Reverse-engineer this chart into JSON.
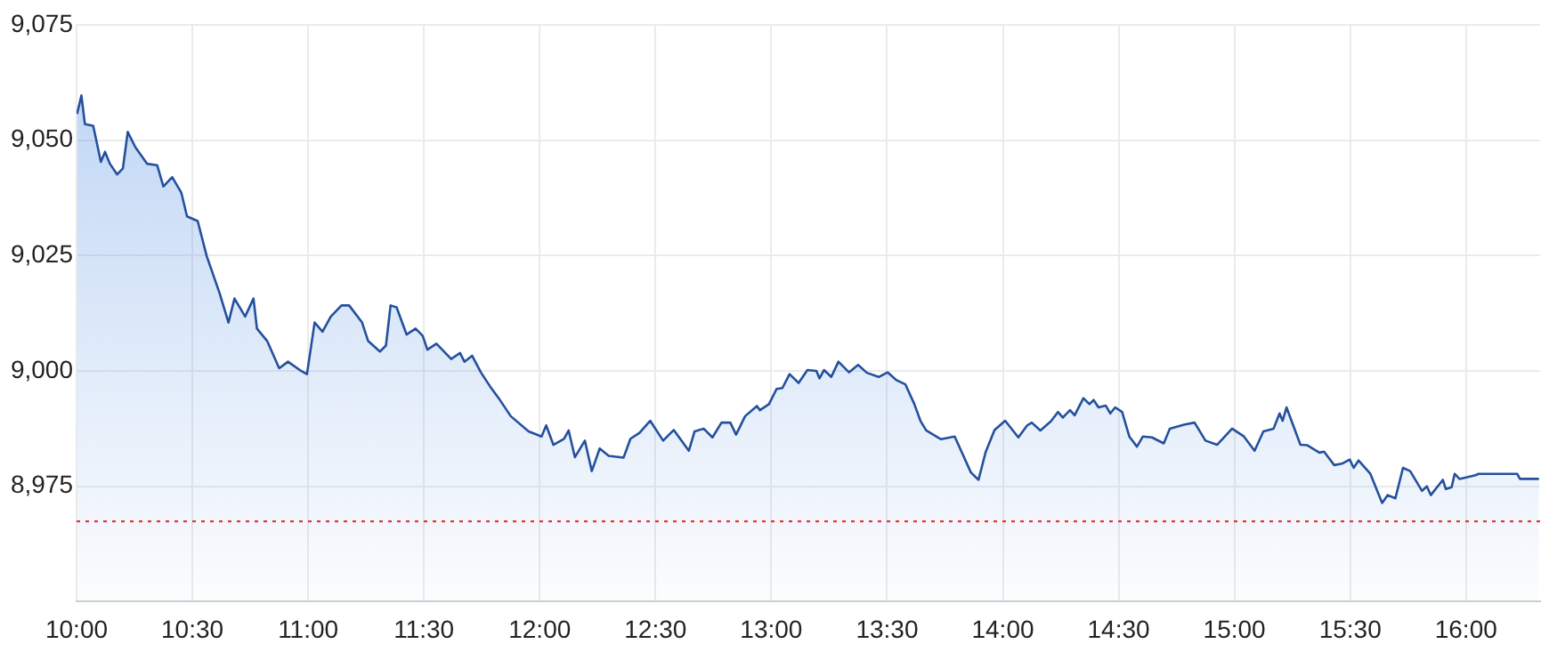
{
  "chart_data": {
    "type": "area",
    "grid": true,
    "legend": false,
    "marker": "none",
    "line_style": "solid",
    "xlim": [
      10,
      16.32
    ],
    "ylim": [
      8950,
      9075
    ],
    "xticks": [
      {
        "value": 10,
        "label": "10:00"
      },
      {
        "value": 10.5,
        "label": "10:30"
      },
      {
        "value": 11,
        "label": "11:00"
      },
      {
        "value": 11.5,
        "label": "11:30"
      },
      {
        "value": 12,
        "label": "12:00"
      },
      {
        "value": 12.5,
        "label": "12:30"
      },
      {
        "value": 13,
        "label": "13:00"
      },
      {
        "value": 13.5,
        "label": "13:30"
      },
      {
        "value": 14,
        "label": "14:00"
      },
      {
        "value": 14.5,
        "label": "14:30"
      },
      {
        "value": 15,
        "label": "15:00"
      },
      {
        "value": 15.5,
        "label": "15:30"
      },
      {
        "value": 16,
        "label": "16:00"
      }
    ],
    "yticks": [
      {
        "value": 8975,
        "label": "8,975"
      },
      {
        "value": 9000,
        "label": "9,000"
      },
      {
        "value": 9025,
        "label": "9,025"
      },
      {
        "value": 9050,
        "label": "9,050"
      },
      {
        "value": 9075,
        "label": "9,075"
      }
    ],
    "ref_lines": [
      {
        "axis": "y",
        "value": 8967.4,
        "color": "#e53935",
        "line_style": "dotted"
      }
    ],
    "series": [
      {
        "color": "#24509e",
        "x": [
          10.002,
          10.021,
          10.036,
          10.072,
          10.105,
          10.123,
          10.144,
          10.175,
          10.2,
          10.221,
          10.254,
          10.305,
          10.348,
          10.375,
          10.413,
          10.452,
          10.477,
          10.523,
          10.562,
          10.618,
          10.656,
          10.682,
          10.728,
          10.764,
          10.779,
          10.823,
          10.875,
          10.913,
          10.964,
          10.995,
          11.028,
          11.062,
          11.098,
          11.144,
          11.177,
          11.233,
          11.259,
          11.31,
          11.336,
          11.356,
          11.382,
          11.425,
          11.464,
          11.495,
          11.515,
          11.554,
          11.618,
          11.656,
          11.675,
          11.708,
          11.746,
          11.785,
          11.823,
          11.875,
          11.952,
          12.008,
          12.028,
          12.059,
          12.105,
          12.125,
          12.152,
          12.195,
          12.225,
          12.259,
          12.298,
          12.362,
          12.392,
          12.431,
          12.477,
          12.533,
          12.579,
          12.644,
          12.669,
          12.708,
          12.746,
          12.785,
          12.823,
          12.848,
          12.887,
          12.938,
          12.951,
          12.99,
          13.023,
          13.048,
          13.079,
          13.118,
          13.156,
          13.195,
          13.208,
          13.228,
          13.259,
          13.29,
          13.336,
          13.375,
          13.413,
          13.464,
          13.502,
          13.541,
          13.579,
          13.618,
          13.644,
          13.669,
          13.733,
          13.792,
          13.862,
          13.895,
          13.925,
          13.964,
          14.01,
          14.067,
          14.105,
          14.125,
          14.162,
          14.208,
          14.238,
          14.259,
          14.29,
          14.31,
          14.348,
          14.374,
          14.392,
          14.413,
          14.444,
          14.464,
          14.485,
          14.515,
          14.546,
          14.579,
          14.605,
          14.644,
          14.695,
          14.721,
          14.785,
          14.828,
          14.875,
          14.925,
          14.99,
          15.041,
          15.087,
          15.125,
          15.169,
          15.195,
          15.208,
          15.225,
          15.285,
          15.315,
          15.367,
          15.387,
          15.431,
          15.464,
          15.498,
          15.515,
          15.536,
          15.587,
          15.638,
          15.662,
          15.695,
          15.728,
          15.759,
          15.81,
          15.831,
          15.848,
          15.9,
          15.913,
          15.938,
          15.951,
          15.972,
          16.041,
          16.054,
          16.221,
          16.233,
          16.315
        ],
        "values": [
          9055.7,
          9059.7,
          9053.5,
          9053.1,
          9045.3,
          9047.5,
          9044.9,
          9042.6,
          9043.9,
          9051.8,
          9048.5,
          9044.9,
          9044.6,
          9040,
          9042,
          9038.7,
          9033.5,
          9032.5,
          9024.9,
          9016.8,
          9010.5,
          9015.7,
          9011.8,
          9015.7,
          9009.2,
          9006.5,
          9000.6,
          9002,
          9000.2,
          8999.3,
          9010.5,
          9008.5,
          9011.8,
          9014.2,
          9014.2,
          9010.5,
          9006.5,
          9004.2,
          9005.5,
          9014.2,
          9013.8,
          9007.9,
          9009.2,
          9007.6,
          9004.6,
          9005.9,
          9002.6,
          9003.9,
          9002,
          9003.3,
          8999.7,
          8996.7,
          8994.1,
          8990.2,
          8986.9,
          8985.8,
          8988.2,
          8984,
          8985.3,
          8987.1,
          8981.3,
          8984.9,
          8978.3,
          8983.2,
          8981.6,
          8981.2,
          8985.3,
          8986.6,
          8989.2,
          8984.9,
          8987.2,
          8982.7,
          8986.9,
          8987.5,
          8985.6,
          8988.8,
          8988.8,
          8986.2,
          8990.2,
          8992.4,
          8991.5,
          8992.8,
          8996.1,
          8996.3,
          8999.3,
          8997.4,
          9000.2,
          9000,
          8998.4,
          9000.2,
          8998.7,
          9002,
          8999.7,
          9001.3,
          8999.6,
          8998.7,
          8999.7,
          8998,
          8997.1,
          8992.8,
          8989.2,
          8987.1,
          8985.2,
          8985.8,
          8978,
          8976.4,
          8982.3,
          8987.2,
          8989.2,
          8985.6,
          8988.2,
          8988.8,
          8987.1,
          8989.1,
          8991.1,
          8989.9,
          8991.5,
          8990.4,
          8994.1,
          8992.8,
          8993.7,
          8992.1,
          8992.5,
          8990.8,
          8992.1,
          8991.1,
          8985.8,
          8983.6,
          8985.8,
          8985.6,
          8984.3,
          8987.5,
          8988.4,
          8988.8,
          8984.9,
          8984,
          8987.5,
          8985.8,
          8982.7,
          8986.9,
          8987.5,
          8990.8,
          8989.2,
          8992.1,
          8984,
          8983.9,
          8982.3,
          8982.5,
          8979.6,
          8979.9,
          8980.8,
          8979,
          8980.6,
          8977.7,
          8971.4,
          8973.1,
          8972.4,
          8979,
          8978.3,
          8974,
          8975,
          8973.1,
          8976.4,
          8974.4,
          8974.8,
          8977.7,
          8976.6,
          8977.4,
          8977.7,
          8977.7,
          8976.6,
          8976.6
        ]
      }
    ]
  }
}
